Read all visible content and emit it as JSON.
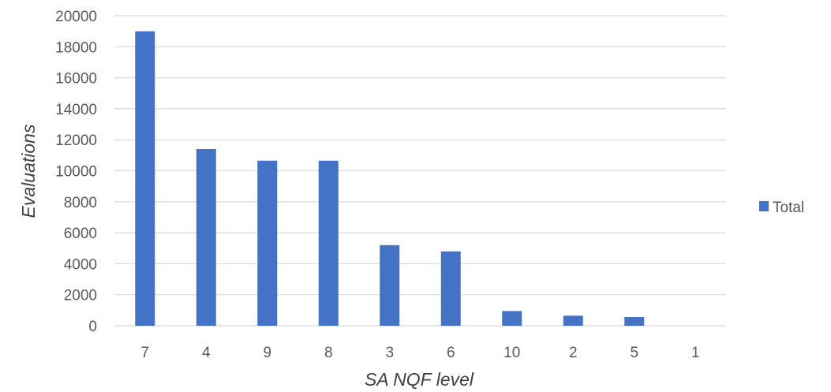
{
  "chart_data": {
    "type": "bar",
    "categories": [
      "7",
      "4",
      "9",
      "8",
      "3",
      "6",
      "10",
      "2",
      "5",
      "1"
    ],
    "series": [
      {
        "name": "Total",
        "color": "#4472C4",
        "values": [
          19000,
          11400,
          10650,
          10650,
          5200,
          4800,
          950,
          650,
          560,
          0
        ]
      }
    ],
    "title": "",
    "xlabel": "SA NQF level",
    "ylabel": "Evaluations",
    "ylim": [
      0,
      20000
    ],
    "yticks": [
      0,
      2000,
      4000,
      6000,
      8000,
      10000,
      12000,
      14000,
      16000,
      18000,
      20000
    ],
    "grid": true,
    "legend_position": "right"
  }
}
